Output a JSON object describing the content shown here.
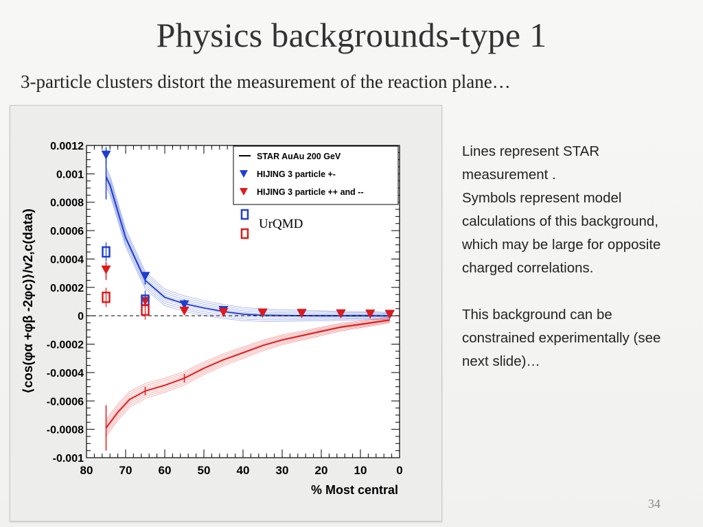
{
  "slide": {
    "title": "Physics backgrounds-type 1",
    "subtitle": "3-particle clusters distort the measurement of the reaction plane…",
    "notes": [
      "Lines represent STAR measurement .",
      "Symbols represent model calculations of this background, which may be large for opposite charged correlations.",
      "",
      "This background can be constrained experimentally (see next slide)…"
    ],
    "page_number": "34"
  },
  "chart_data": {
    "type": "line",
    "xlabel": "% Most central",
    "ylabel": "⟨cos(φα +φβ -2φc)⟩/v2,c(data)",
    "xlim": [
      80,
      0
    ],
    "ylim": [
      -0.001,
      0.0012
    ],
    "x_ticks": [
      "80",
      "70",
      "60",
      "50",
      "40",
      "30",
      "20",
      "10",
      "0"
    ],
    "y_ticks": [
      "0.0012",
      "0.001",
      "0.0008",
      "0.0006",
      "0.0004",
      "0.0002",
      "0",
      "-0.0002",
      "-0.0004",
      "-0.0006",
      "-0.0008",
      "-0.001"
    ],
    "legend": {
      "placement": "top-right",
      "entries": [
        "STAR AuAu 200 GeV",
        "HIJING 3 particle +-",
        "HIJING 3 particle ++ and --"
      ]
    },
    "annotation": "UrQMD",
    "colors": {
      "blue": "#1f3fcf",
      "red": "#e01a1a",
      "black": "#000000"
    },
    "series": [
      {
        "name": "STAR AuAu 200 GeV",
        "color": "#1f3fcf",
        "style": "line-band",
        "x": [
          75,
          74,
          70,
          65,
          60,
          55,
          50,
          45,
          40,
          35,
          30,
          25,
          20,
          15,
          10,
          5,
          2.5
        ],
        "y": [
          0.00098,
          0.00092,
          0.00055,
          0.00025,
          0.00013,
          8.5e-05,
          5.5e-05,
          3e-05,
          1.2e-05,
          4e-06,
          2e-06,
          1e-06,
          5e-07,
          3e-07,
          2e-07,
          1e-07,
          0.0
        ],
        "band": 7e-05
      },
      {
        "name": "STAR AuAu 200 GeV",
        "color": "#e01a1a",
        "style": "line-band",
        "x": [
          75,
          72,
          69,
          65,
          60,
          55,
          50,
          45,
          40,
          35,
          30,
          25,
          20,
          15,
          10,
          5,
          2.5
        ],
        "y": [
          -0.00079,
          -0.00068,
          -0.00059,
          -0.00053,
          -0.00049,
          -0.00044,
          -0.00037,
          -0.00031,
          -0.00026,
          -0.00021,
          -0.00017,
          -0.00014,
          -0.00011,
          -8e-05,
          -6e-05,
          -4e-05,
          -3e-05
        ],
        "band": 6e-05
      },
      {
        "name": "HIJING 3 particle +-",
        "color": "#1f3fcf",
        "marker": "triangle-down",
        "x": [
          75,
          65,
          55,
          45,
          35,
          25,
          15,
          7.5,
          2.5
        ],
        "y": [
          0.00113,
          0.000275,
          7.5e-05,
          3.5e-05,
          1.5e-05,
          1.2e-05,
          1e-05,
          8e-06,
          5e-06
        ]
      },
      {
        "name": "HIJING 3 particle ++ and --",
        "color": "#e01a1a",
        "marker": "triangle-down",
        "x": [
          75,
          65,
          55,
          45,
          35,
          25,
          15,
          7.5,
          2.5
        ],
        "y": [
          0.00032,
          0.0001,
          3e-05,
          2e-05,
          1.8e-05,
          1.5e-05,
          1.2e-05,
          1e-05,
          8e-06
        ]
      },
      {
        "name": "UrQMD +-",
        "color": "#1f3fcf",
        "marker": "open-square",
        "x": [
          75,
          65
        ],
        "y": [
          0.00045,
          0.00011
        ]
      },
      {
        "name": "UrQMD ++ and --",
        "color": "#e01a1a",
        "marker": "open-square",
        "x": [
          75,
          65
        ],
        "y": [
          0.00013,
          4e-05
        ]
      }
    ]
  }
}
